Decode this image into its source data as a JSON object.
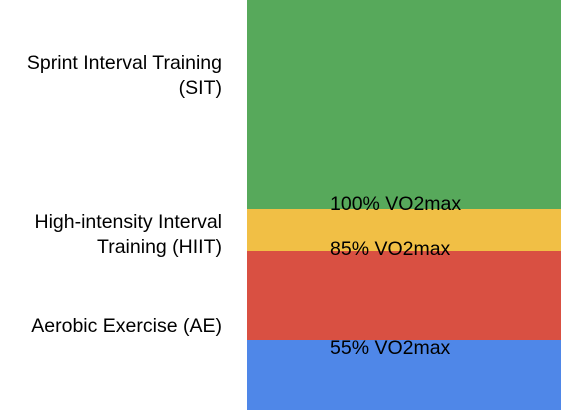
{
  "zones": [
    {
      "key": "sit",
      "label_lines": [
        "Sprint Interval Training",
        "(SIT)"
      ],
      "color": "#57a95b"
    },
    {
      "key": "hiit",
      "label_lines": [
        "High-intensity Interval",
        "Training (HIIT)"
      ],
      "color": "#f1bf45"
    },
    {
      "key": "ae",
      "label_lines": [
        "Aerobic Exercise (AE)"
      ],
      "color": "#d95042"
    },
    {
      "key": "base",
      "label_lines": [],
      "color": "#4f87e8"
    }
  ],
  "thresholds": [
    {
      "value": 100,
      "label": "100% VO2max"
    },
    {
      "value": 85,
      "label": "85% VO2max"
    },
    {
      "value": 55,
      "label": "55% VO2max"
    }
  ]
}
